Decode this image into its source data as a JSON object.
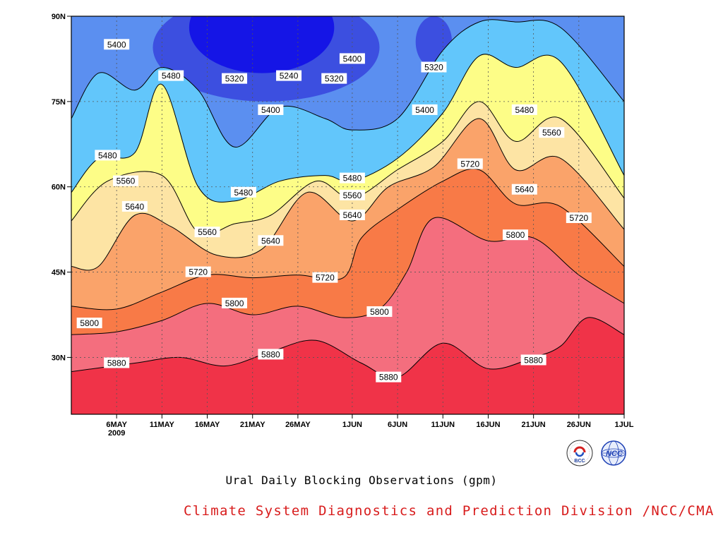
{
  "chart_data": {
    "type": "heatmap",
    "subtype": "filled-contour (latitude-time Hovmoller)",
    "title": "Ural Daily Blocking Observations (gpm)",
    "xlabel": "",
    "ylabel": "",
    "x_ticks": [
      "6MAY\n2009",
      "11MAY",
      "16MAY",
      "21MAY",
      "26MAY",
      "1JUN",
      "6JUN",
      "11JUN",
      "16JUN",
      "21JUN",
      "26JUN",
      "1JUL"
    ],
    "x_range": [
      "2009-05-01",
      "2009-07-01"
    ],
    "y_ticks": [
      "30N",
      "45N",
      "60N",
      "75N",
      "90N"
    ],
    "y_range": [
      20,
      90
    ],
    "contour_levels": [
      5240,
      5320,
      5400,
      5480,
      5560,
      5640,
      5720,
      5800,
      5880
    ],
    "fill_colors": [
      "#1515e6",
      "#3c4fe0",
      "#5b8ff0",
      "#62c6fb",
      "#fdfd87",
      "#fde4a4",
      "#faa36a",
      "#f87a47",
      "#f46e7e",
      "#f03348"
    ],
    "contour_boundaries": [
      {
        "level": 5880,
        "x": [
          "2009-05-01",
          "2009-05-08",
          "2009-05-13",
          "2009-05-18",
          "2009-05-23",
          "2009-05-28",
          "2009-06-02",
          "2009-06-06",
          "2009-06-11",
          "2009-06-16",
          "2009-06-21",
          "2009-06-24",
          "2009-06-27",
          "2009-07-01"
        ],
        "lat": [
          27.5,
          29,
          30,
          28.5,
          31,
          33,
          29,
          26.5,
          32.5,
          28,
          30,
          32,
          37,
          34
        ]
      },
      {
        "level": 5800,
        "x": [
          "2009-05-01",
          "2009-05-06",
          "2009-05-11",
          "2009-05-16",
          "2009-05-21",
          "2009-05-26",
          "2009-05-31",
          "2009-06-04",
          "2009-06-07",
          "2009-06-10",
          "2009-06-16",
          "2009-06-21",
          "2009-06-26",
          "2009-07-01"
        ],
        "lat": [
          34,
          34.5,
          36.5,
          39.5,
          37.5,
          39,
          37,
          38.5,
          45,
          54.5,
          50.5,
          51,
          44.5,
          39.5
        ]
      },
      {
        "level": 5720,
        "x": [
          "2009-05-01",
          "2009-05-06",
          "2009-05-11",
          "2009-05-16",
          "2009-05-21",
          "2009-05-26",
          "2009-05-31",
          "2009-06-02",
          "2009-06-06",
          "2009-06-11",
          "2009-06-15",
          "2009-06-19",
          "2009-06-24",
          "2009-07-01"
        ],
        "lat": [
          39,
          38.5,
          41.5,
          44.5,
          44,
          44.5,
          44,
          51,
          56,
          61,
          63,
          57,
          56.5,
          46
        ]
      },
      {
        "level": 5640,
        "x": [
          "2009-05-01",
          "2009-05-04",
          "2009-05-08",
          "2009-05-12",
          "2009-05-17",
          "2009-05-22",
          "2009-05-27",
          "2009-06-01",
          "2009-06-05",
          "2009-06-10",
          "2009-06-15",
          "2009-06-19",
          "2009-06-24",
          "2009-07-01"
        ],
        "lat": [
          46,
          46,
          55,
          53,
          48,
          49,
          59,
          54,
          60,
          63.5,
          72,
          63,
          65,
          52.5
        ]
      },
      {
        "level": 5560,
        "x": [
          "2009-05-01",
          "2009-05-05",
          "2009-05-11",
          "2009-05-15",
          "2009-05-19",
          "2009-05-23",
          "2009-05-28",
          "2009-06-01",
          "2009-06-06",
          "2009-06-11",
          "2009-06-15",
          "2009-06-19",
          "2009-06-24",
          "2009-07-01"
        ],
        "lat": [
          54,
          61,
          62,
          52,
          53.5,
          55,
          61,
          58,
          63,
          68,
          75,
          68,
          72,
          58
        ]
      },
      {
        "level": 5480,
        "x": [
          "2009-05-01",
          "2009-05-04",
          "2009-05-08",
          "2009-05-11",
          "2009-05-15",
          "2009-05-19",
          "2009-05-24",
          "2009-05-29",
          "2009-06-01",
          "2009-06-06",
          "2009-06-11",
          "2009-06-15",
          "2009-06-19",
          "2009-06-24",
          "2009-07-01"
        ],
        "lat": [
          59,
          65,
          66,
          78,
          60,
          57.5,
          61,
          62,
          61,
          65,
          73,
          83,
          81,
          82,
          62
        ]
      },
      {
        "level": 5400,
        "x": [
          "2009-05-01",
          "2009-05-04",
          "2009-05-08",
          "2009-05-11",
          "2009-05-15",
          "2009-05-19",
          "2009-05-24",
          "2009-05-29",
          "2009-06-01",
          "2009-06-06",
          "2009-06-11",
          "2009-06-15",
          "2009-06-19",
          "2009-06-24",
          "2009-07-01"
        ],
        "lat": [
          72,
          80,
          77,
          81,
          77,
          67,
          74,
          72,
          70,
          72,
          84,
          89,
          89,
          88,
          75
        ]
      }
    ],
    "contour_labels": [
      {
        "text": "5400",
        "x": "2009-05-06",
        "lat": 85
      },
      {
        "text": "5480",
        "x": "2009-05-12",
        "lat": 79.5
      },
      {
        "text": "5320",
        "x": "2009-05-19",
        "lat": 79
      },
      {
        "text": "5240",
        "x": "2009-05-25",
        "lat": 79.5
      },
      {
        "text": "5320",
        "x": "2009-05-30",
        "lat": 79
      },
      {
        "text": "5400",
        "x": "2009-06-01",
        "lat": 82.5
      },
      {
        "text": "5320",
        "x": "2009-06-10",
        "lat": 81
      },
      {
        "text": "5400",
        "x": "2009-05-23",
        "lat": 73.5
      },
      {
        "text": "5400",
        "x": "2009-06-09",
        "lat": 73.5
      },
      {
        "text": "5480",
        "x": "2009-05-05",
        "lat": 65.5
      },
      {
        "text": "5560",
        "x": "2009-05-07",
        "lat": 61
      },
      {
        "text": "5640",
        "x": "2009-05-08",
        "lat": 56.5
      },
      {
        "text": "5480",
        "x": "2009-05-20",
        "lat": 59
      },
      {
        "text": "5560",
        "x": "2009-05-16",
        "lat": 52
      },
      {
        "text": "5640",
        "x": "2009-05-23",
        "lat": 50.5
      },
      {
        "text": "5480",
        "x": "2009-06-01",
        "lat": 61.5
      },
      {
        "text": "5560",
        "x": "2009-06-01",
        "lat": 58.5
      },
      {
        "text": "5640",
        "x": "2009-06-01",
        "lat": 55
      },
      {
        "text": "5720",
        "x": "2009-06-14",
        "lat": 64
      },
      {
        "text": "5480",
        "x": "2009-06-20",
        "lat": 73.5
      },
      {
        "text": "5560",
        "x": "2009-06-23",
        "lat": 69.5
      },
      {
        "text": "5640",
        "x": "2009-06-20",
        "lat": 59.5
      },
      {
        "text": "5720",
        "x": "2009-06-26",
        "lat": 54.5
      },
      {
        "text": "5800",
        "x": "2009-06-19",
        "lat": 51.5
      },
      {
        "text": "5720",
        "x": "2009-05-15",
        "lat": 45
      },
      {
        "text": "5720",
        "x": "2009-05-29",
        "lat": 44
      },
      {
        "text": "5800",
        "x": "2009-05-19",
        "lat": 39.5
      },
      {
        "text": "5800",
        "x": "2009-06-04",
        "lat": 38
      },
      {
        "text": "5800",
        "x": "2009-05-03",
        "lat": 36
      },
      {
        "text": "5880",
        "x": "2009-05-06",
        "lat": 29
      },
      {
        "text": "5880",
        "x": "2009-05-23",
        "lat": 30.5
      },
      {
        "text": "5880",
        "x": "2009-06-05",
        "lat": 26.5
      },
      {
        "text": "5880",
        "x": "2009-06-21",
        "lat": 29.5
      }
    ],
    "grid": true
  },
  "caption": "Ural Daily Blocking Observations (gpm)",
  "credit": "Climate System Diagnostics and Prediction Division /NCC/CMA",
  "logos": {
    "bcc": {
      "icon": "bcc-logo-icon",
      "text": "BCC"
    },
    "ncc": {
      "icon": "ncc-logo-icon",
      "text": "NCC"
    }
  }
}
